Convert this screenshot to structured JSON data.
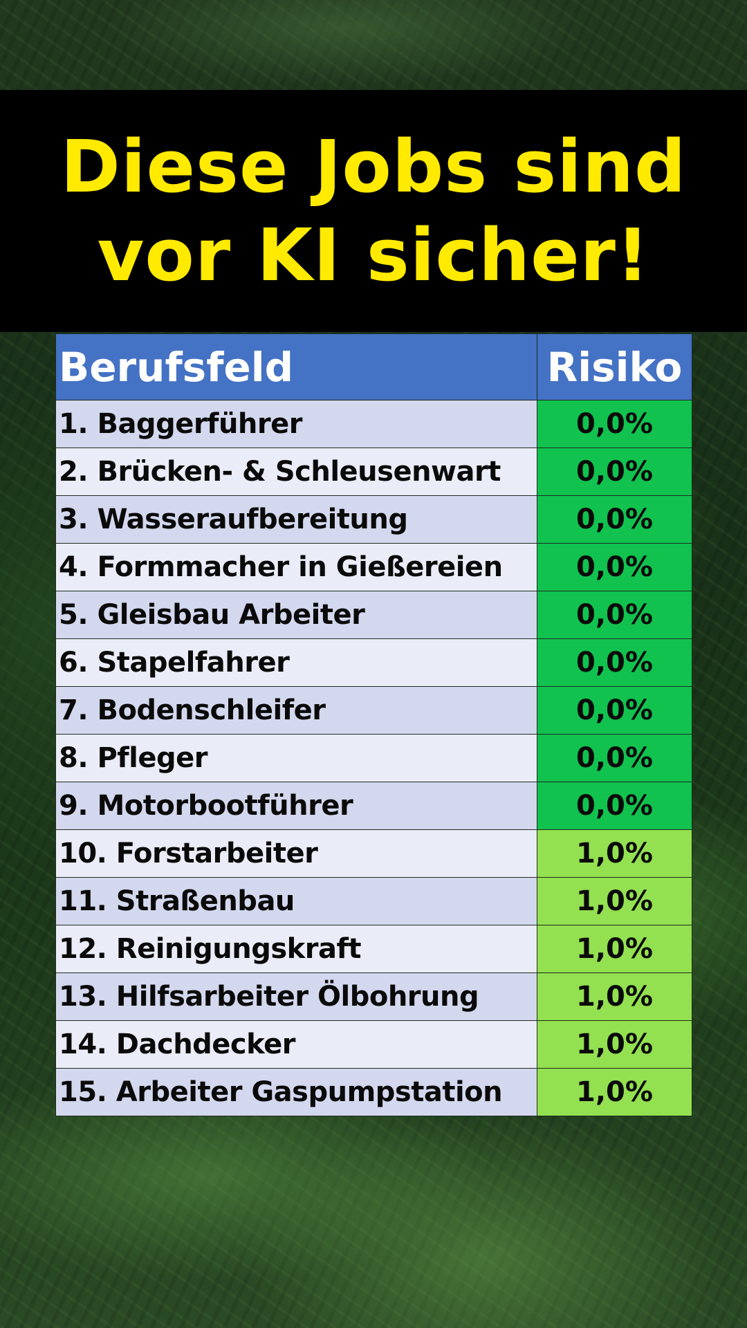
{
  "title": {
    "line1": "Diese Jobs sind",
    "line2": "vor KI sicher!"
  },
  "table": {
    "headers": {
      "field": "Berufsfeld",
      "risk": "Risiko"
    },
    "rows": [
      {
        "job": "1. Baggerführer",
        "risk": "0,0%"
      },
      {
        "job": "2. Brücken- & Schleusenwart",
        "risk": "0,0%"
      },
      {
        "job": "3. Wasseraufbereitung",
        "risk": "0,0%"
      },
      {
        "job": "4. Formmacher in Gießereien",
        "risk": "0,0%"
      },
      {
        "job": "5. Gleisbau Arbeiter",
        "risk": "0,0%"
      },
      {
        "job": "6. Stapelfahrer",
        "risk": "0,0%"
      },
      {
        "job": "7. Bodenschleifer",
        "risk": "0,0%"
      },
      {
        "job": "8. Pfleger",
        "risk": "0,0%"
      },
      {
        "job": "9. Motorbootführer",
        "risk": "0,0%"
      },
      {
        "job": "10. Forstarbeiter",
        "risk": "1,0%"
      },
      {
        "job": "11. Straßenbau",
        "risk": "1,0%"
      },
      {
        "job": "12. Reinigungskraft",
        "risk": "1,0%"
      },
      {
        "job": "13. Hilfsarbeiter Ölbohrung",
        "risk": "1,0%"
      },
      {
        "job": "14. Dachdecker",
        "risk": "1,0%"
      },
      {
        "job": "15. Arbeiter Gaspumpstation",
        "risk": "1,0%"
      }
    ]
  },
  "colors": {
    "title_text": "#ffea00",
    "title_banner": "#000000",
    "header_bg": "#4472c4",
    "risk_zero": "#11c24f",
    "risk_one": "#93e050"
  }
}
